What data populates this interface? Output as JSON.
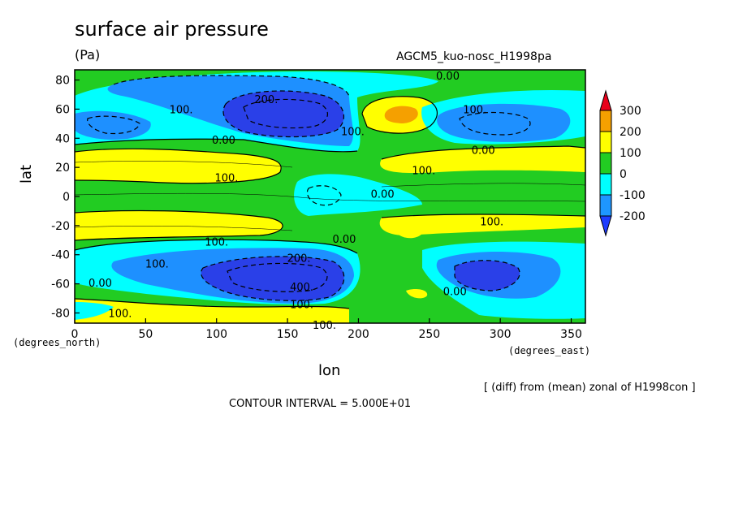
{
  "chart_data": {
    "type": "contour",
    "title": "surface air pressure",
    "units": "(Pa)",
    "model": "AGCM5_kuo-nosc_H1998pa",
    "xlabel": "lon",
    "ylabel": "lat",
    "x_unit_label": "(degrees_east)",
    "y_unit_label": "(degrees_north)",
    "footnote": "[ (diff) from (mean) zonal of H1998con ]",
    "contour_interval": "CONTOUR INTERVAL = 5.000E+01",
    "xlim": [
      0,
      360
    ],
    "ylim": [
      -87,
      87
    ],
    "x_ticks": [
      0,
      50,
      100,
      150,
      200,
      250,
      300,
      350
    ],
    "y_ticks": [
      -80,
      -60,
      -40,
      -20,
      0,
      20,
      40,
      60,
      80
    ],
    "colorbar": {
      "levels": [
        "300",
        "200",
        "100",
        "0",
        "-100",
        "-200"
      ],
      "colors": [
        "#e8001a",
        "#f5a000",
        "#ffff00",
        "#22cc22",
        "#00ffff",
        "#1e96ff",
        "#1e3cff"
      ]
    },
    "fill_colors": {
      "very_low": "#2a40e8",
      "low": "#1e90ff",
      "slightly_low": "#00ffff",
      "near_zero": "#22cc22",
      "high": "#ffff00",
      "very_high": "#f5a000"
    },
    "contour_labels": [
      {
        "text": "0.00",
        "lon": 263,
        "lat": 83
      },
      {
        "text": "200.",
        "lon": 135,
        "lat": 67
      },
      {
        "text": "100.",
        "lon": 75,
        "lat": 60
      },
      {
        "text": "100.",
        "lon": 282,
        "lat": 60
      },
      {
        "text": "100.",
        "lon": 196,
        "lat": 45
      },
      {
        "text": "0.00",
        "lon": 105,
        "lat": 39
      },
      {
        "text": "0.00",
        "lon": 288,
        "lat": 32
      },
      {
        "text": "100.",
        "lon": 107,
        "lat": 13
      },
      {
        "text": "100.",
        "lon": 246,
        "lat": 18
      },
      {
        "text": "0.00",
        "lon": 217,
        "lat": 2
      },
      {
        "text": "100.",
        "lon": 294,
        "lat": -17
      },
      {
        "text": "100.",
        "lon": 100,
        "lat": -31
      },
      {
        "text": "0.00",
        "lon": 190,
        "lat": -29
      },
      {
        "text": "200.",
        "lon": 158,
        "lat": -42
      },
      {
        "text": "100.",
        "lon": 58,
        "lat": -46
      },
      {
        "text": "0.00",
        "lon": 18,
        "lat": -59
      },
      {
        "text": "400.",
        "lon": 160,
        "lat": -62
      },
      {
        "text": "100.",
        "lon": 160,
        "lat": -74
      },
      {
        "text": "0.00",
        "lon": 268,
        "lat": -65
      },
      {
        "text": "100.",
        "lon": 32,
        "lat": -80
      },
      {
        "text": "100.",
        "lon": 176,
        "lat": -88
      }
    ]
  }
}
